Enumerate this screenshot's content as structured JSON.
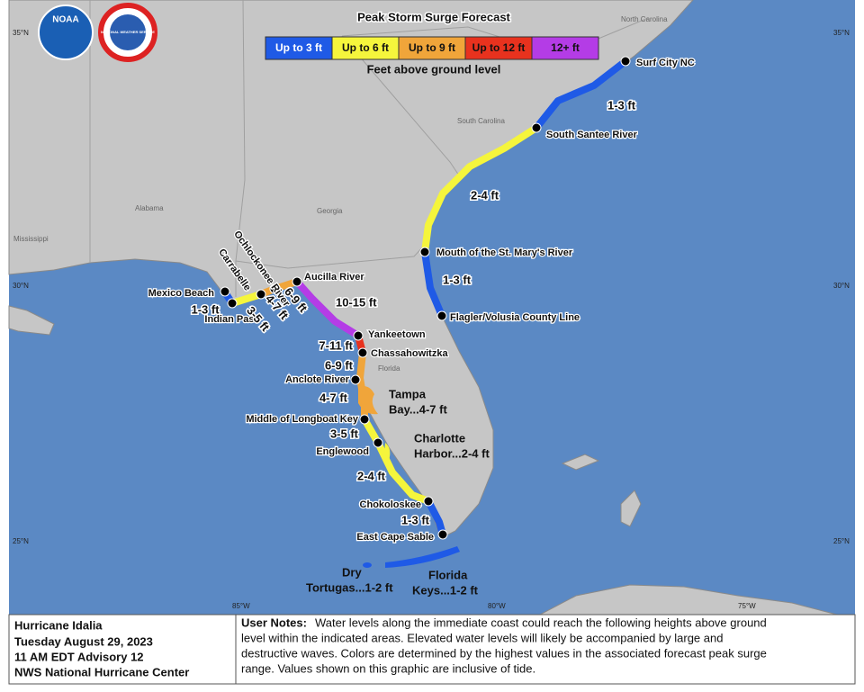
{
  "title": "Peak Storm Surge Forecast",
  "legend": {
    "items": [
      {
        "label": "Up to 3 ft",
        "color": "#1f5ae6"
      },
      {
        "label": "Up to 6 ft",
        "color": "#f5f53c"
      },
      {
        "label": "Up to 9 ft",
        "color": "#f0a53a"
      },
      {
        "label": "Up to 12 ft",
        "color": "#e8321e"
      },
      {
        "label": "12+ ft",
        "color": "#b43ce6"
      }
    ],
    "caption": "Feet above ground level"
  },
  "logos": {
    "noaa": "NOAA",
    "nws": "NATIONAL WEATHER SERVICE"
  },
  "regions": [
    "North Carolina",
    "South Carolina",
    "Georgia",
    "Alabama",
    "Mississippi",
    "Florida"
  ],
  "grid_labels": {
    "lat": [
      "35°N",
      "30°N",
      "25°N"
    ],
    "lon": [
      "85°W",
      "80°W",
      "75°W"
    ]
  },
  "points": [
    "Surf City NC",
    "South Santee River",
    "Mouth of the St. Mary's River",
    "Flagler/Volusia County Line",
    "Aucilla River",
    "Yankeetown",
    "Chassahowitzka",
    "Anclote River",
    "Middle of Longboat Key",
    "Englewood",
    "Chokoloskee",
    "East Cape Sable",
    "Mexico Beach",
    "Carrabelle",
    "Ochlockonee River",
    "Indian Pass"
  ],
  "segment_labels": [
    "1-3 ft",
    "2-4 ft",
    "1-3 ft",
    "10-15 ft",
    "7-11 ft",
    "6-9 ft",
    "4-7 ft",
    "3-5 ft",
    "2-4 ft",
    "1-3 ft",
    "1-3 ft",
    "3-5 ft",
    "4-7 ft",
    "6-9 ft"
  ],
  "area_labels": [
    [
      "Tampa",
      "Bay...4-7 ft"
    ],
    [
      "Charlotte",
      "Harbor...2-4 ft"
    ],
    [
      "Dry",
      "Tortugas...1-2 ft"
    ],
    [
      "Florida",
      "Keys...1-2 ft"
    ]
  ],
  "footer": {
    "storm": [
      "Hurricane Idalia",
      "Tuesday August 29, 2023",
      "11 AM EDT Advisory 12",
      "NWS National Hurricane Center"
    ],
    "notes_label": "User Notes:",
    "notes": [
      "Water levels along the immediate coast could reach the following heights above ground",
      "level within the indicated areas. Elevated water levels will likely be accompanied by large and",
      "destructive waves. Colors are determined by the highest values in the associated forecast peak surge",
      "range. Values shown on this graphic are inclusive of tide."
    ]
  }
}
